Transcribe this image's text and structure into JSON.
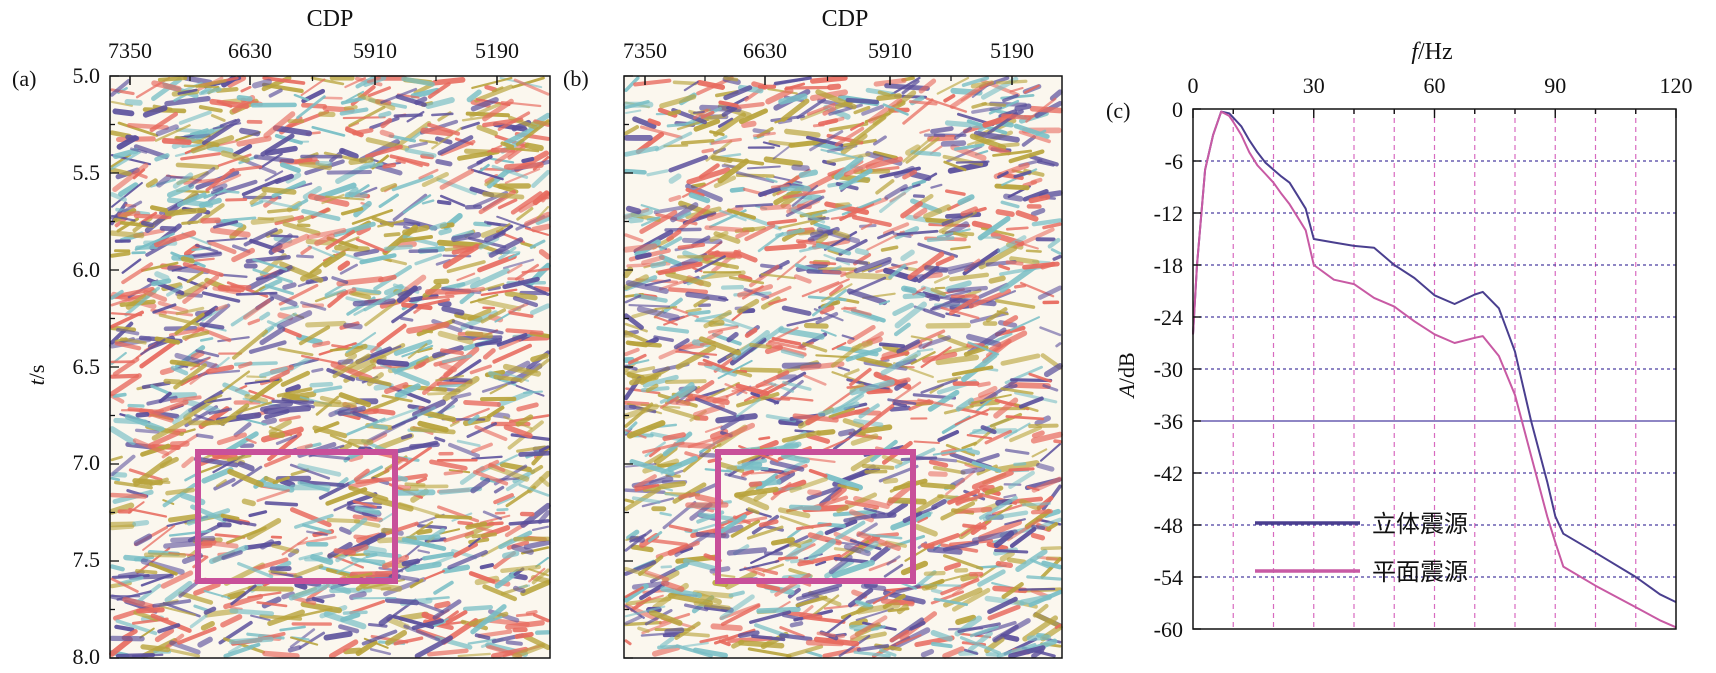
{
  "panels": {
    "a": {
      "label": "(a)",
      "x_title": "CDP",
      "x_ticks": [
        "7350",
        "6630",
        "5910",
        "5190"
      ],
      "y_title_italic": "t",
      "y_title_rest": "/s",
      "y_ticks": [
        "5.0",
        "5.5",
        "6.0",
        "6.5",
        "7.0",
        "7.5",
        "8.0"
      ]
    },
    "b": {
      "label": "(b)",
      "x_title": "CDP",
      "x_ticks": [
        "7350",
        "6630",
        "5910",
        "5190"
      ]
    }
  },
  "colors": {
    "box": "#c8509a",
    "seismic": [
      "#e86a5e",
      "#5a4f9c",
      "#b9a43c",
      "#79bfc6"
    ],
    "series_3d": "#4a3f8f",
    "series_plane": "#c85aa4",
    "h_grid": "#4a3fa0",
    "v_grid": "#d86ac0"
  },
  "chart_data": {
    "type": "line",
    "label": "(c)",
    "xlabel_italic": "f",
    "xlabel_rest": "/Hz",
    "ylabel_italic": "A",
    "ylabel_rest": "/dB",
    "xlim": [
      0,
      120
    ],
    "ylim": [
      -60,
      0
    ],
    "x_ticks": [
      "0",
      "30",
      "60",
      "90",
      "120"
    ],
    "y_ticks": [
      "0",
      "-6",
      "-12",
      "-18",
      "-24",
      "-30",
      "-36",
      "-42",
      "-48",
      "-54",
      "-60"
    ],
    "grid": true,
    "legend_placement": "lower-left",
    "series": [
      {
        "name": "立体震源",
        "x": [
          0,
          1,
          3,
          5,
          7,
          9,
          10,
          12,
          14,
          16,
          18,
          20,
          22,
          24,
          26,
          28,
          30,
          35,
          40,
          45,
          50,
          55,
          60,
          65,
          70,
          72,
          76,
          80,
          84,
          88,
          90,
          92,
          100,
          110,
          116,
          120
        ],
        "y": [
          -26,
          -18,
          -7,
          -3,
          -0.3,
          -0.5,
          -1,
          -2,
          -3.6,
          -5,
          -6.2,
          -7,
          -7.8,
          -8.5,
          -10,
          -11.5,
          -15,
          -15.4,
          -15.8,
          -16,
          -18,
          -19.5,
          -21.5,
          -22.5,
          -21.4,
          -21.1,
          -23,
          -28,
          -36,
          -43,
          -47,
          -49,
          -51.2,
          -54,
          -56,
          -56.9
        ]
      },
      {
        "name": "平面震源",
        "x": [
          0,
          1,
          3,
          5,
          7,
          9,
          10,
          12,
          14,
          16,
          18,
          20,
          22,
          24,
          26,
          28,
          30,
          35,
          40,
          45,
          50,
          55,
          60,
          65,
          70,
          72,
          76,
          80,
          84,
          88,
          90,
          92,
          100,
          110,
          116,
          120
        ],
        "y": [
          -26,
          -18,
          -7,
          -3,
          -0.3,
          -0.8,
          -1.5,
          -3,
          -5,
          -6.5,
          -7.5,
          -8.5,
          -9.8,
          -11,
          -12.5,
          -14,
          -18,
          -19.7,
          -20.2,
          -21.8,
          -22.8,
          -24.5,
          -26,
          -27,
          -26.4,
          -26.2,
          -28.5,
          -33,
          -40,
          -47,
          -50,
          -52.8,
          -55,
          -57.5,
          -59,
          -59.8
        ]
      }
    ]
  }
}
